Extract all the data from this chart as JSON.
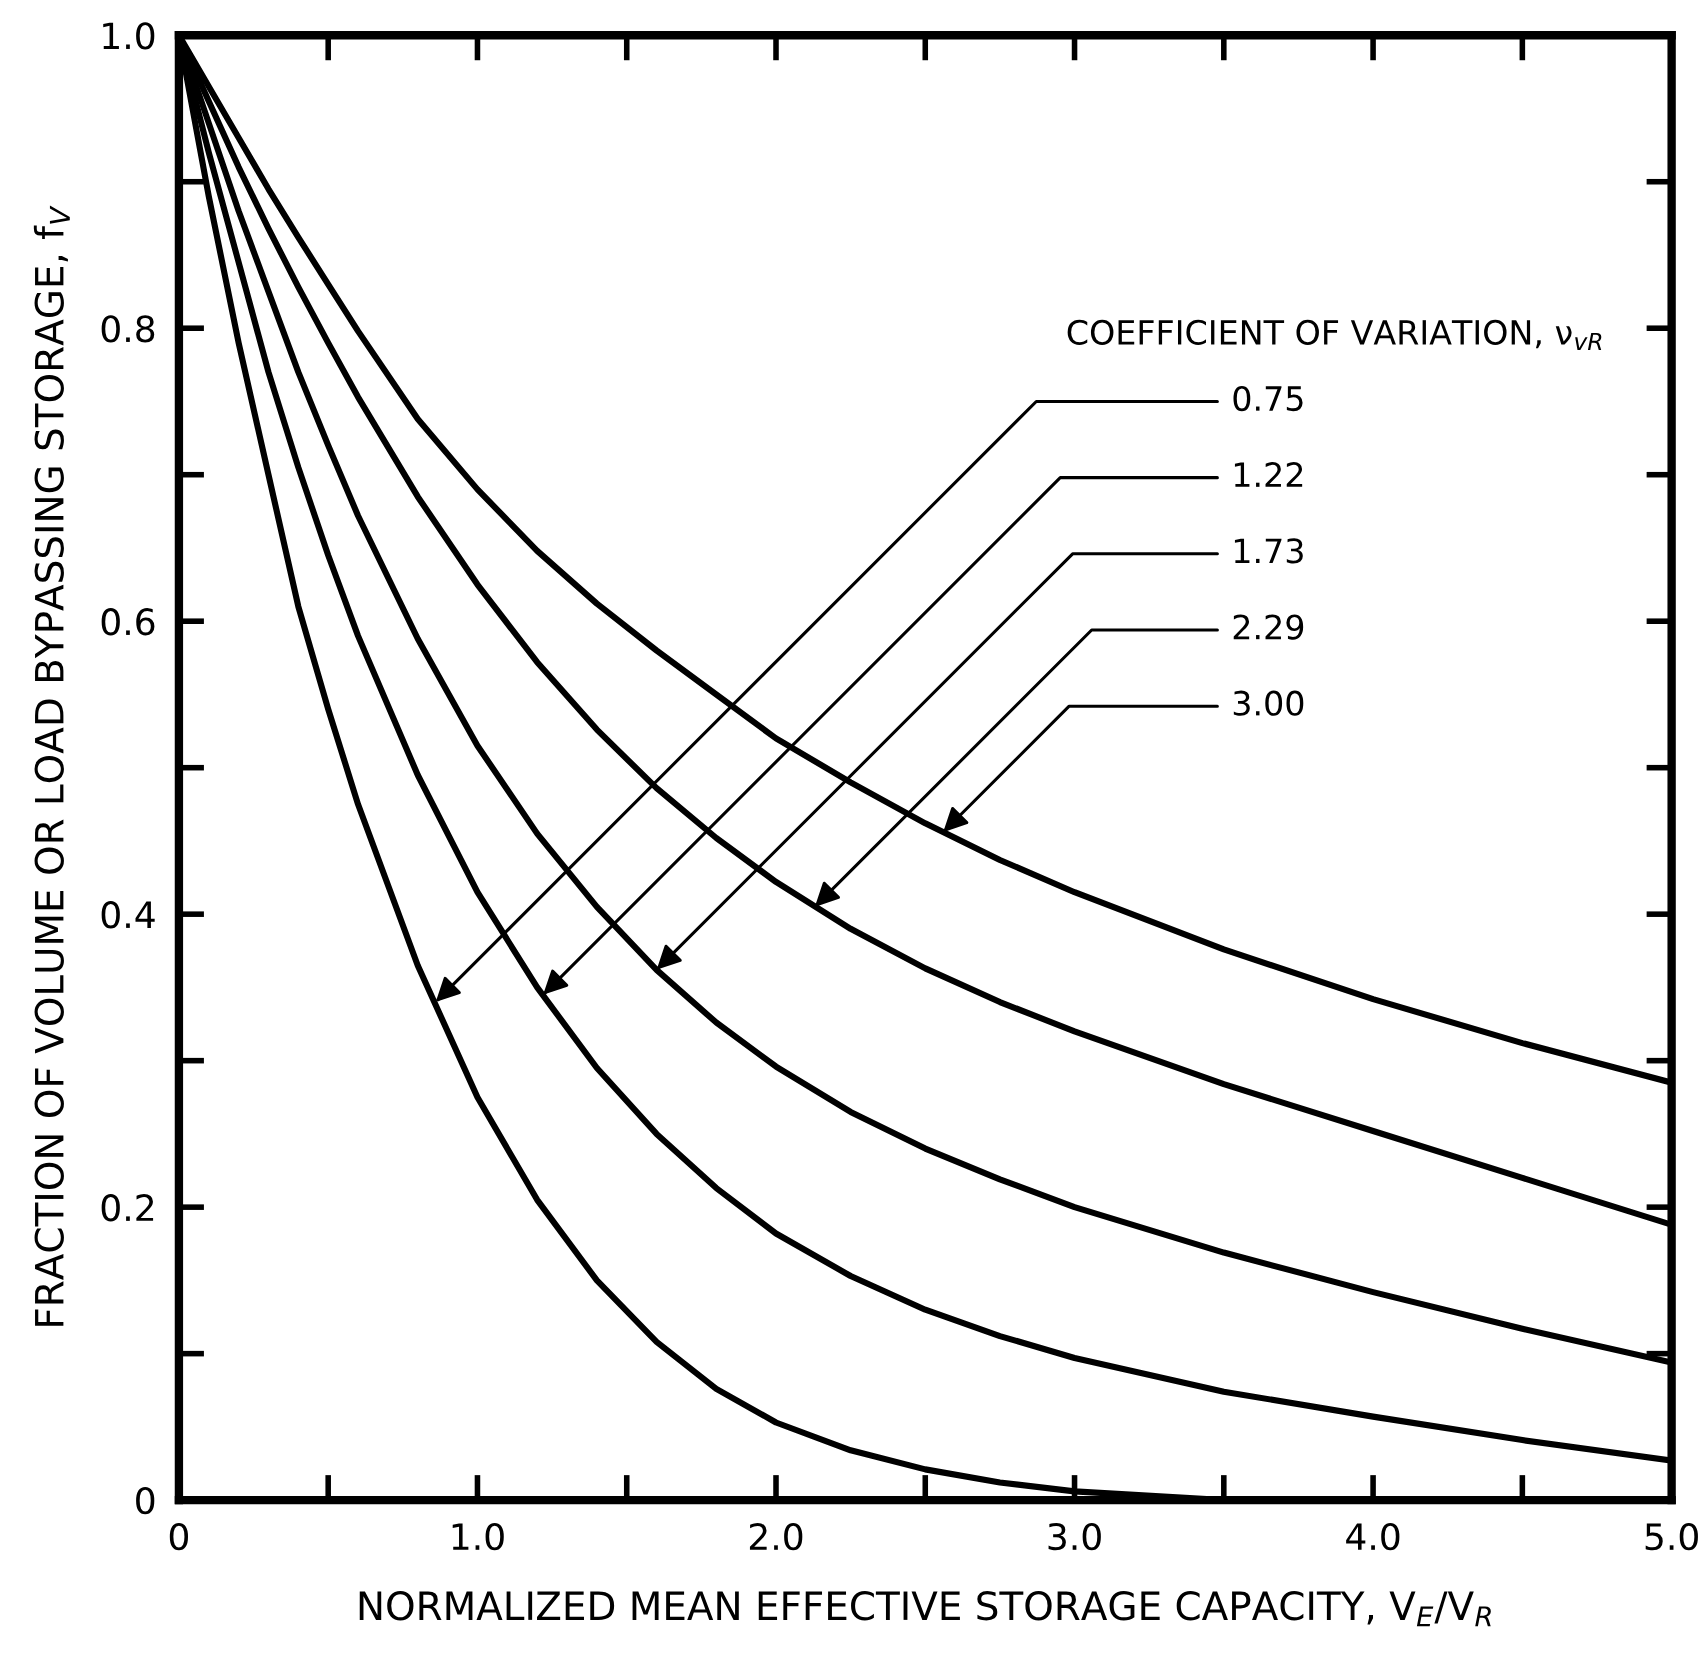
{
  "chart_data": {
    "type": "line",
    "xlabel": "NORMALIZED MEAN EFFECTIVE STORAGE CAPACITY, V$_{E}$/V$_{R}$",
    "ylabel": "FRACTION OF VOLUME OR LOAD BYPASSING STORAGE, f$_{V}$",
    "xlim": [
      0,
      5.0
    ],
    "ylim": [
      0,
      1.0
    ],
    "xticks": [
      0,
      {
        "value": 0.5,
        "label": null
      },
      {
        "value": 1.0,
        "label": "1.0"
      },
      {
        "value": 1.5,
        "label": null
      },
      {
        "value": 2.0,
        "label": "2.0"
      },
      {
        "value": 2.5,
        "label": null
      },
      {
        "value": 3.0,
        "label": "3.0"
      },
      {
        "value": 3.5,
        "label": null
      },
      {
        "value": 4.0,
        "label": "4.0"
      },
      {
        "value": 4.5,
        "label": null
      },
      {
        "value": 5.0,
        "label": "5.0"
      }
    ],
    "yticks": [
      0,
      {
        "value": 0.1,
        "label": null
      },
      0.2,
      {
        "value": 0.3,
        "label": null
      },
      0.4,
      {
        "value": 0.5,
        "label": null
      },
      0.6,
      {
        "value": 0.7,
        "label": null
      },
      0.8,
      {
        "value": 0.9,
        "label": null
      },
      {
        "value": 1.0,
        "label": "1.0"
      }
    ],
    "grid": false,
    "marker": "none",
    "line_style": "solid",
    "x": [
      0,
      0.1,
      0.2,
      0.3,
      0.4,
      0.5,
      0.6,
      0.8,
      1.0,
      1.2,
      1.4,
      1.6,
      1.8,
      2.0,
      2.25,
      2.5,
      2.75,
      3.0,
      3.5,
      4.0,
      4.5,
      5.0
    ],
    "series": [
      {
        "color": "#000000",
        "values": [
          1.0,
          0.89,
          0.79,
          0.7,
          0.61,
          0.54,
          0.475,
          0.365,
          0.275,
          0.205,
          0.15,
          0.108,
          0.076,
          0.053,
          0.034,
          0.021,
          0.012,
          0.006,
          0.0,
          0.0,
          0.0,
          0.0
        ]
      },
      {
        "color": "#000000",
        "values": [
          1.0,
          0.92,
          0.845,
          0.77,
          0.705,
          0.645,
          0.59,
          0.495,
          0.415,
          0.35,
          0.295,
          0.25,
          0.213,
          0.182,
          0.153,
          0.13,
          0.112,
          0.097,
          0.074,
          0.057,
          0.041,
          0.027
        ]
      },
      {
        "color": "#000000",
        "values": [
          1.0,
          0.94,
          0.88,
          0.825,
          0.77,
          0.72,
          0.672,
          0.588,
          0.515,
          0.455,
          0.405,
          0.362,
          0.326,
          0.296,
          0.265,
          0.24,
          0.219,
          0.2,
          0.169,
          0.142,
          0.117,
          0.094
        ]
      },
      {
        "color": "#000000",
        "values": [
          1.0,
          0.955,
          0.91,
          0.868,
          0.828,
          0.79,
          0.753,
          0.685,
          0.625,
          0.572,
          0.526,
          0.486,
          0.452,
          0.422,
          0.39,
          0.363,
          0.34,
          0.32,
          0.284,
          0.252,
          0.22,
          0.188
        ]
      },
      {
        "color": "#000000",
        "values": [
          1.0,
          0.965,
          0.93,
          0.895,
          0.862,
          0.83,
          0.798,
          0.738,
          0.69,
          0.648,
          0.612,
          0.58,
          0.55,
          0.52,
          0.49,
          0.462,
          0.437,
          0.415,
          0.376,
          0.342,
          0.312,
          0.285
        ]
      }
    ],
    "annotations": [
      "COEFFICIENT OF VARIATION, ν$_{vR}$",
      {
        "text": "0.75",
        "x": 0.86,
        "y": 0.34
      },
      {
        "text": "1.22",
        "x": 1.22,
        "y": 0.345
      },
      {
        "text": "1.73",
        "x": 1.6,
        "y": 0.362
      },
      {
        "text": "2.29",
        "x": 2.13,
        "y": 0.405
      },
      {
        "text": "3.00",
        "x": 2.56,
        "y": 0.456
      }
    ]
  }
}
